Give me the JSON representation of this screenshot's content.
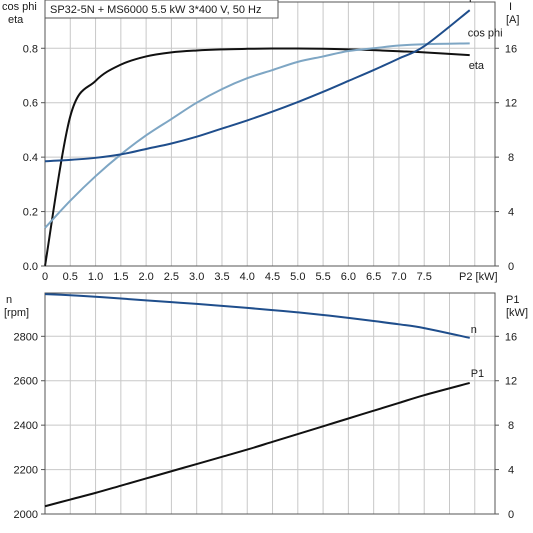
{
  "title_box": "SP32-5N + MS6000   5.5 kW   3*400 V, 50 Hz",
  "colors": {
    "eta": "#111111",
    "cos_phi": "#7ea6c4",
    "current": "#1f4e8c",
    "speed": "#1f4e8c",
    "p1": "#111111",
    "grid": "#c8c8c8",
    "frame": "#555555"
  },
  "chart_data": [
    {
      "type": "line",
      "x": [
        0,
        0.5,
        1.0,
        1.5,
        2.0,
        2.5,
        3.0,
        3.5,
        4.0,
        4.5,
        5.0,
        5.5,
        6.0,
        6.5,
        7.0,
        7.5,
        8.4
      ],
      "xlim": [
        0,
        8.9
      ],
      "x_ticks": [
        "0",
        "0.5",
        "1.0",
        "1.5",
        "2.0",
        "2.5",
        "3.0",
        "3.5",
        "4.0",
        "4.5",
        "5.0",
        "5.5",
        "6.0",
        "6.5",
        "7.0",
        "7.5"
      ],
      "x_unit_label": "P2 [kW]",
      "left_axis": {
        "label_line1": "cos phi",
        "label_line2": "eta",
        "ylim": [
          0,
          0.97
        ],
        "ticks": [
          "0.0",
          "0.2",
          "0.4",
          "0.6",
          "0.8"
        ],
        "tick_values": [
          0,
          0.2,
          0.4,
          0.6,
          0.8
        ]
      },
      "right_axis": {
        "label_line1": "I",
        "label_line2": "[A]",
        "ylim": [
          0,
          19.4
        ],
        "ticks": [
          "0",
          "4",
          "8",
          "12",
          "16"
        ],
        "tick_values": [
          0,
          4,
          8,
          12,
          16
        ]
      },
      "series": [
        {
          "name": "eta",
          "axis": "left",
          "values": [
            0.0,
            0.55,
            0.68,
            0.74,
            0.77,
            0.785,
            0.792,
            0.796,
            0.798,
            0.799,
            0.799,
            0.798,
            0.796,
            0.793,
            0.789,
            0.785,
            0.775
          ]
        },
        {
          "name": "cos phi",
          "axis": "left",
          "values": [
            0.14,
            0.24,
            0.33,
            0.41,
            0.48,
            0.54,
            0.6,
            0.65,
            0.69,
            0.72,
            0.75,
            0.77,
            0.79,
            0.8,
            0.81,
            0.815,
            0.818
          ]
        },
        {
          "name": "I",
          "axis": "right",
          "values": [
            7.7,
            7.8,
            7.95,
            8.2,
            8.6,
            9.0,
            9.5,
            10.1,
            10.7,
            11.35,
            12.05,
            12.8,
            13.6,
            14.4,
            15.25,
            16.15,
            18.8
          ]
        }
      ]
    },
    {
      "type": "line",
      "x": [
        0,
        0.5,
        1.0,
        1.5,
        2.0,
        2.5,
        3.0,
        3.5,
        4.0,
        4.5,
        5.0,
        5.5,
        6.0,
        6.5,
        7.0,
        7.5,
        8.4
      ],
      "xlim": [
        0,
        8.9
      ],
      "left_axis": {
        "label_line1": "n",
        "label_line2": "[rpm]",
        "ylim": [
          2000,
          2995
        ],
        "ticks": [
          "2000",
          "2200",
          "2400",
          "2600",
          "2800"
        ],
        "tick_values": [
          2000,
          2200,
          2400,
          2600,
          2800
        ]
      },
      "right_axis": {
        "label_line1": "P1",
        "label_line2": "[kW]",
        "ylim": [
          0,
          19.9
        ],
        "ticks": [
          "0",
          "4",
          "8",
          "12",
          "16"
        ],
        "tick_values": [
          0,
          4,
          8,
          12,
          16
        ]
      },
      "series": [
        {
          "name": "n",
          "axis": "left",
          "values": [
            2990,
            2985,
            2978,
            2970,
            2962,
            2954,
            2946,
            2937,
            2928,
            2918,
            2908,
            2896,
            2883,
            2869,
            2854,
            2837,
            2793
          ]
        },
        {
          "name": "P1",
          "axis": "right",
          "values": [
            0.7,
            1.3,
            1.9,
            2.55,
            3.2,
            3.85,
            4.5,
            5.15,
            5.8,
            6.5,
            7.2,
            7.9,
            8.6,
            9.3,
            10.0,
            10.7,
            11.8
          ]
        }
      ]
    }
  ]
}
